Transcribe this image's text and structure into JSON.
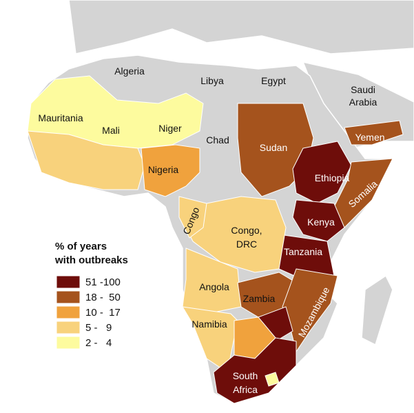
{
  "map": {
    "labels": [
      [
        "Algeria"
      ],
      [
        "Libya"
      ],
      [
        "Egypt"
      ],
      [
        "Saudi",
        "Arabia"
      ],
      [
        "Mauritania"
      ],
      [
        "Mali"
      ],
      [
        "Niger"
      ],
      [
        "Chad"
      ],
      [
        "Sudan"
      ],
      [
        "Yemen"
      ],
      [
        "Nigeria"
      ],
      [
        "Ethiopia"
      ],
      [
        "Somalia"
      ],
      [
        "Congo"
      ],
      [
        "Congo,",
        "DRC"
      ],
      [
        "Kenya"
      ],
      [
        "Tanzania"
      ],
      [
        "Angola"
      ],
      [
        "Zambia"
      ],
      [
        "Mozambique"
      ],
      [
        "Namibia"
      ],
      [
        "South",
        "Africa"
      ]
    ],
    "legend": {
      "title": [
        "% of years",
        "with outbreaks"
      ],
      "items": [
        {
          "label": "51 -100",
          "color": "#6e0d0a"
        },
        {
          "label": "18 -  50",
          "color": "#a5531d"
        },
        {
          "label": "10 -  17",
          "color": "#f0a23d"
        },
        {
          "label": "5 -   9",
          "color": "#f8d27c"
        },
        {
          "label": "2 -   4",
          "color": "#fdfb9e"
        }
      ]
    }
  }
}
